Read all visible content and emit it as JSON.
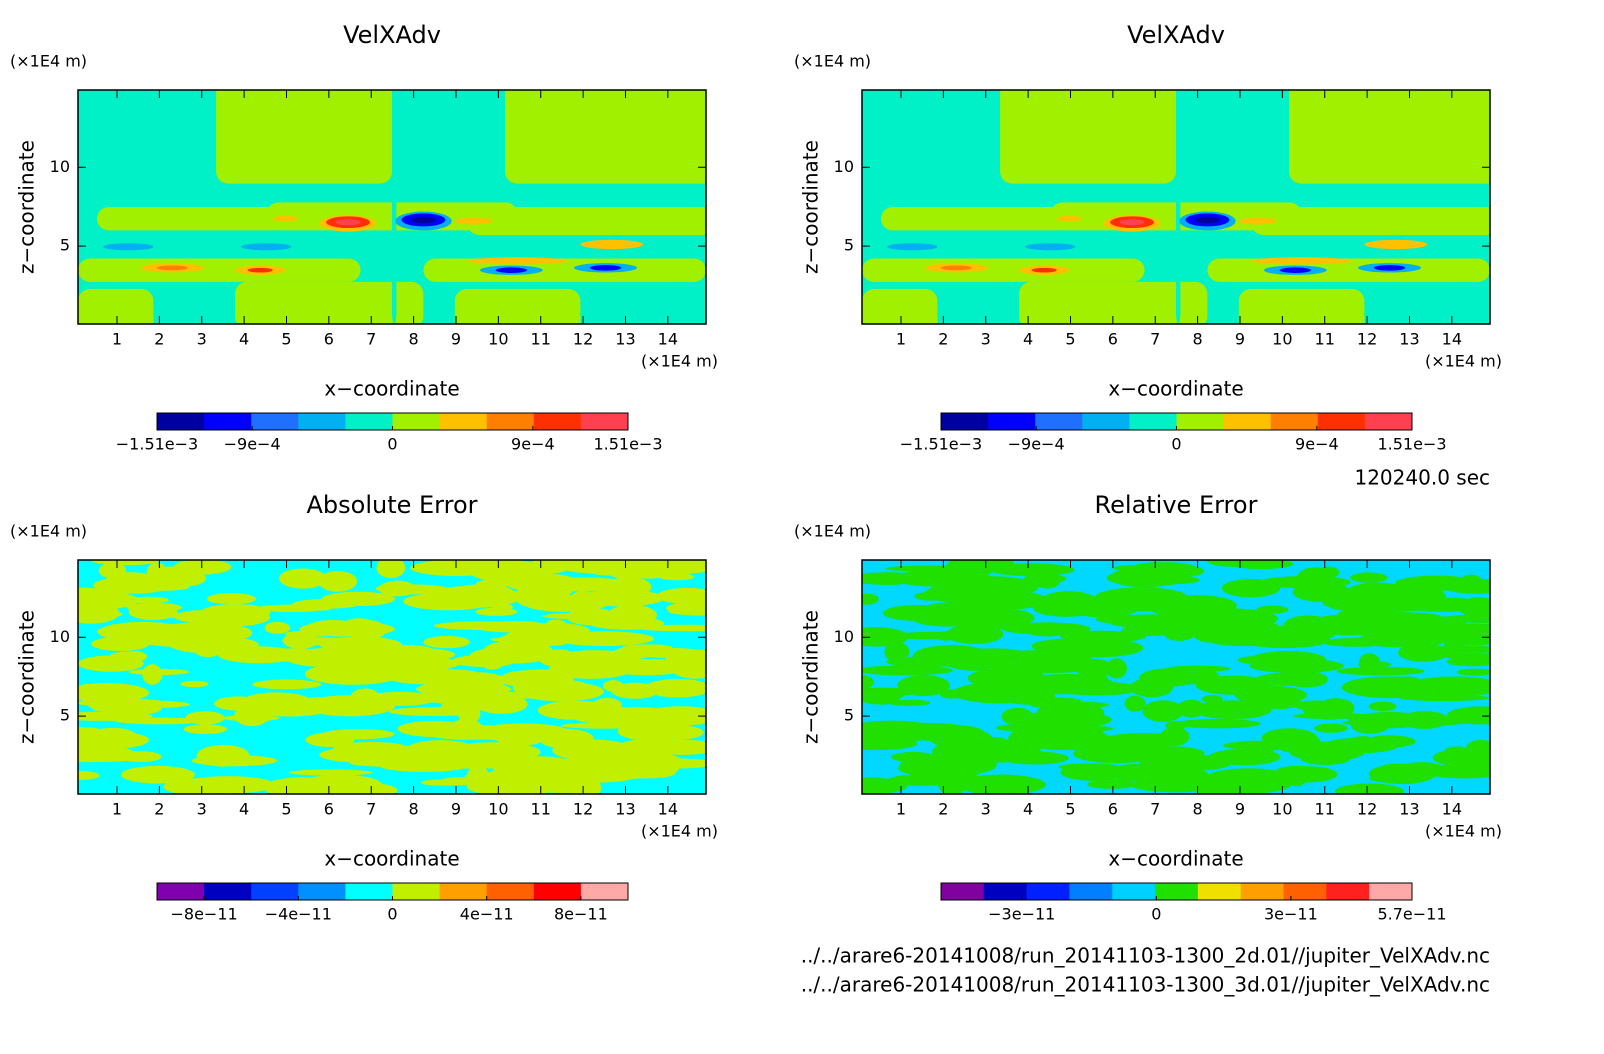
{
  "chart_data": [
    {
      "type": "contour",
      "title": "VelXAdv",
      "xlabel": "x−coordinate",
      "ylabel": "z−coordinate",
      "x_unit": "(×1E4 m)",
      "y_unit": "(×1E4 m)",
      "xlim": [
        0.08,
        14.9
      ],
      "ylim": [
        0.06,
        14.9
      ],
      "xticks": [
        1,
        2,
        3,
        4,
        5,
        6,
        7,
        8,
        9,
        10,
        11,
        12,
        13,
        14
      ],
      "yticks": [
        5,
        10
      ],
      "colorbar": {
        "clim": [
          -0.00151,
          0.00151
        ],
        "colors": [
          "#0000a0",
          "#0000ff",
          "#2070ff",
          "#00b0f0",
          "#00f0c8",
          "#a0f000",
          "#ffc000",
          "#ff8000",
          "#ff3000",
          "#ff4050"
        ],
        "ticks": [
          {
            "value": -0.00151,
            "label": "−1.51e−3"
          },
          {
            "value": -0.0009,
            "label": "−9e−4"
          },
          0,
          {
            "value": 0.0009,
            "label": "9e−4"
          },
          {
            "value": 0.00151,
            "label": "1.51e−3"
          }
        ]
      }
    },
    {
      "type": "contour",
      "title": "VelXAdv",
      "xlabel": "x−coordinate",
      "ylabel": "z−coordinate",
      "x_unit": "(×1E4 m)",
      "y_unit": "(×1E4 m)",
      "xlim": [
        0.08,
        14.9
      ],
      "ylim": [
        0.06,
        14.9
      ],
      "xticks": [
        1,
        2,
        3,
        4,
        5,
        6,
        7,
        8,
        9,
        10,
        11,
        12,
        13,
        14
      ],
      "yticks": [
        5,
        10
      ],
      "colorbar": {
        "clim": [
          -0.00151,
          0.00151
        ],
        "colors": [
          "#0000a0",
          "#0000ff",
          "#2070ff",
          "#00b0f0",
          "#00f0c8",
          "#a0f000",
          "#ffc000",
          "#ff8000",
          "#ff3000",
          "#ff4050"
        ],
        "ticks": [
          {
            "value": -0.00151,
            "label": "−1.51e−3"
          },
          {
            "value": -0.0009,
            "label": "−9e−4"
          },
          0,
          {
            "value": 0.0009,
            "label": "9e−4"
          },
          {
            "value": 0.00151,
            "label": "1.51e−3"
          }
        ]
      }
    },
    {
      "type": "contour",
      "title": "Absolute Error",
      "xlabel": "x−coordinate",
      "ylabel": "z−coordinate",
      "x_unit": "(×1E4 m)",
      "y_unit": "(×1E4 m)",
      "xlim": [
        0.08,
        14.9
      ],
      "ylim": [
        0.06,
        14.9
      ],
      "xticks": [
        1,
        2,
        3,
        4,
        5,
        6,
        7,
        8,
        9,
        10,
        11,
        12,
        13,
        14
      ],
      "yticks": [
        5,
        10
      ],
      "colorbar": {
        "clim": [
          -1e-10,
          1e-10
        ],
        "colors": [
          "#8000b0",
          "#0000c0",
          "#0040ff",
          "#0090ff",
          "#00ffff",
          "#c0f000",
          "#ffa000",
          "#ff6000",
          "#ff0000",
          "#ffa8a8"
        ],
        "ticks": [
          {
            "value": -8e-11,
            "label": "−8e−11"
          },
          {
            "value": -4e-11,
            "label": "−4e−11"
          },
          0,
          {
            "value": 4e-11,
            "label": "4e−11"
          },
          {
            "value": 8e-11,
            "label": "8e−11"
          }
        ]
      }
    },
    {
      "type": "contour",
      "title": "Relative Error",
      "xlabel": "x−coordinate",
      "ylabel": "z−coordinate",
      "x_unit": "(×1E4 m)",
      "y_unit": "(×1E4 m)",
      "xlim": [
        0.08,
        14.9
      ],
      "ylim": [
        0.06,
        14.9
      ],
      "xticks": [
        1,
        2,
        3,
        4,
        5,
        6,
        7,
        8,
        9,
        10,
        11,
        12,
        13,
        14
      ],
      "yticks": [
        5,
        10
      ],
      "colorbar": {
        "clim": [
          -4.8e-11,
          5.7e-11
        ],
        "colors": [
          "#8000a0",
          "#0000c0",
          "#0020ff",
          "#0080ff",
          "#00d0ff",
          "#20e000",
          "#f0e000",
          "#ffa000",
          "#ff6000",
          "#ff2020",
          "#ffa8a8"
        ],
        "ticks": [
          {
            "value": -3e-11,
            "label": "−3e−11"
          },
          0,
          {
            "value": 3e-11,
            "label": "3e−11"
          },
          {
            "value": 5.7e-11,
            "label": "5.7e−11"
          }
        ]
      }
    }
  ],
  "annotations": {
    "time": "120240.0 sec",
    "files": [
      "../../arare6-20141008/run_20141103-1300_2d.01//jupiter_VelXAdv.nc",
      "../../arare6-20141008/run_20141103-1300_3d.01//jupiter_VelXAdv.nc"
    ]
  }
}
